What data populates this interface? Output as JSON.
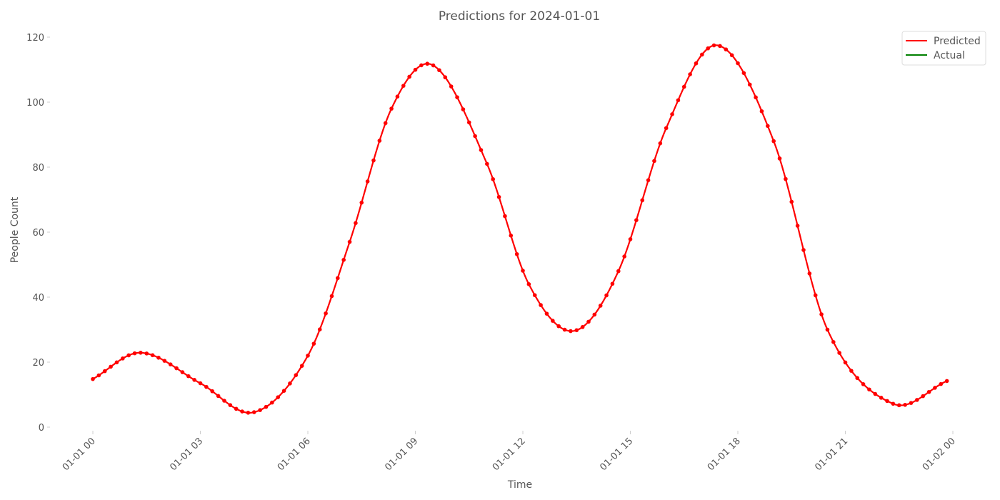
{
  "chart_data": {
    "type": "line",
    "title": "Predictions for 2024-01-01",
    "xlabel": "Time",
    "ylabel": "People Count",
    "ylim": [
      0,
      120
    ],
    "yticks": [
      0,
      20,
      40,
      60,
      80,
      100,
      120
    ],
    "x_range": [
      "2024-01-01 00:00",
      "2024-01-02 00:00"
    ],
    "xticks": [
      {
        "value": "2024-01-01 00:00",
        "label": "01-01 00"
      },
      {
        "value": "2024-01-01 03:00",
        "label": "01-01 03"
      },
      {
        "value": "2024-01-01 06:00",
        "label": "01-01 06"
      },
      {
        "value": "2024-01-01 09:00",
        "label": "01-01 09"
      },
      {
        "value": "2024-01-01 12:00",
        "label": "01-01 12"
      },
      {
        "value": "2024-01-01 15:00",
        "label": "01-01 15"
      },
      {
        "value": "2024-01-01 18:00",
        "label": "01-01 18"
      },
      {
        "value": "2024-01-01 21:00",
        "label": "01-01 21"
      },
      {
        "value": "2024-01-02 00:00",
        "label": "01-02 00"
      }
    ],
    "grid": false,
    "legend_position": "top-right",
    "series": [
      {
        "name": "Predicted",
        "color": "#ff0000",
        "marker": "circle",
        "points": [
          {
            "x": "2024-01-01 00:00",
            "y": 14.8
          },
          {
            "x": "2024-01-01 01:20",
            "y": 22.9
          },
          {
            "x": "2024-01-01 03:00",
            "y": 13.5
          },
          {
            "x": "2024-01-01 04:30",
            "y": 4.6
          },
          {
            "x": "2024-01-01 06:00",
            "y": 22.0
          },
          {
            "x": "2024-01-01 07:10",
            "y": 57.0
          },
          {
            "x": "2024-01-01 08:20",
            "y": 98.0
          },
          {
            "x": "2024-01-01 09:30",
            "y": 111.3
          },
          {
            "x": "2024-01-01 11:00",
            "y": 81.0
          },
          {
            "x": "2024-01-01 12:10",
            "y": 44.0
          },
          {
            "x": "2024-01-01 13:25",
            "y": 29.6
          },
          {
            "x": "2024-01-01 14:40",
            "y": 48.0
          },
          {
            "x": "2024-01-01 16:00",
            "y": 92.0
          },
          {
            "x": "2024-01-01 17:25",
            "y": 117.5
          },
          {
            "x": "2024-01-01 19:00",
            "y": 88.0
          },
          {
            "x": "2024-01-01 20:30",
            "y": 30.0
          },
          {
            "x": "2024-01-01 22:20",
            "y": 7.2
          },
          {
            "x": "2024-01-01 23:50",
            "y": 14.2
          }
        ]
      },
      {
        "name": "Actual",
        "color": "#008000",
        "points": []
      }
    ]
  }
}
